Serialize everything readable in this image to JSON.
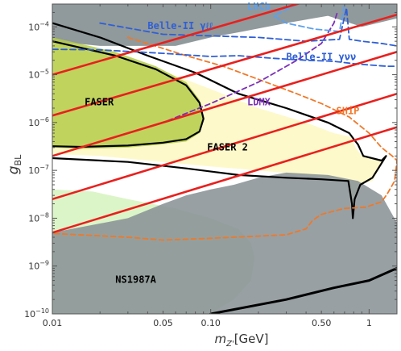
{
  "chart_data": {
    "type": "line",
    "title": "",
    "xlabel_main": "m",
    "xlabel_sub": "Z'",
    "xlabel_unit": "[GeV]",
    "ylabel_main": "g",
    "ylabel_sub": "BL",
    "xscale": "log",
    "yscale": "log",
    "xlim": [
      0.01,
      1.5
    ],
    "ylim": [
      1e-10,
      0.0003
    ],
    "grid": false,
    "legend": "none",
    "x_ticks": [
      {
        "value": 0.01,
        "label": "0.01"
      },
      {
        "value": 0.05,
        "label": "0.05"
      },
      {
        "value": 0.1,
        "label": "0.10"
      },
      {
        "value": 0.5,
        "label": "0.50"
      },
      {
        "value": 1,
        "label": "1"
      }
    ],
    "y_ticks": [
      {
        "exp": -10,
        "base": "10",
        "sup": "−10"
      },
      {
        "exp": -9,
        "base": "10",
        "sup": "−9"
      },
      {
        "exp": -8,
        "base": "10",
        "sup": "−8"
      },
      {
        "exp": -7,
        "base": "10",
        "sup": "−7"
      },
      {
        "exp": -6,
        "base": "10",
        "sup": "−6"
      },
      {
        "exp": -5,
        "base": "10",
        "sup": "−5"
      },
      {
        "exp": -4,
        "base": "10",
        "sup": "−4"
      }
    ],
    "colors": {
      "excluded_gray": "#8a9396",
      "ns1987a_fill": "#dcf5c8",
      "faser2_fill": "#fdf8c4",
      "faser_fill": "#b5cc4a",
      "ship": "#f07828",
      "ldmx": "#7b2fb8",
      "belle": "#2f5fd6",
      "lhcb": "#5aa0f0",
      "red_lines": "#e8201e",
      "black": "#000000"
    },
    "regions": [
      {
        "name": "excluded",
        "label": "",
        "points": [
          [
            0.01,
            1e-10
          ],
          [
            1.5,
            1e-10
          ],
          [
            1.5,
            8e-09
          ],
          [
            1.2,
            3e-08
          ],
          [
            0.85,
            6e-08
          ],
          [
            0.55,
            8e-08
          ],
          [
            0.3,
            9e-08
          ],
          [
            0.2,
            7e-08
          ],
          [
            0.14,
            5e-08
          ],
          [
            0.1,
            4e-08
          ],
          [
            0.07,
            3e-08
          ],
          [
            0.05,
            2e-08
          ],
          [
            0.03,
            1e-08
          ],
          [
            0.01,
            5e-09
          ]
        ]
      },
      {
        "name": "excluded-top",
        "label": "",
        "points": [
          [
            0.01,
            0.0003
          ],
          [
            1.5,
            0.0003
          ],
          [
            1.5,
            0.00015
          ],
          [
            0.9,
            0.0001
          ],
          [
            0.55,
            0.00017
          ],
          [
            0.3,
            0.00012
          ],
          [
            0.16,
            8e-05
          ],
          [
            0.1,
            6e-05
          ],
          [
            0.06,
            4e-05
          ],
          [
            0.02,
            4e-05
          ],
          [
            0.01,
            5e-05
          ]
        ]
      },
      {
        "name": "ns1987a",
        "label": "NS1987A",
        "points": [
          [
            0.01,
            1e-10
          ],
          [
            0.1,
            1e-10
          ],
          [
            0.14,
            2e-10
          ],
          [
            0.18,
            5e-10
          ],
          [
            0.19,
            1.5e-09
          ],
          [
            0.18,
            3e-09
          ],
          [
            0.15,
            6e-09
          ],
          [
            0.1,
            1e-08
          ],
          [
            0.06,
            1.6e-08
          ],
          [
            0.03,
            2.5e-08
          ],
          [
            0.018,
            3.6e-08
          ],
          [
            0.01,
            4e-08
          ]
        ]
      },
      {
        "name": "faser2",
        "label": "FASER 2",
        "points": [
          [
            0.02,
            3e-05
          ],
          [
            0.04,
            1.6e-05
          ],
          [
            0.1,
            5e-06
          ],
          [
            0.2,
            2e-06
          ],
          [
            0.4,
            1e-06
          ],
          [
            0.6,
            6e-07
          ],
          [
            0.77,
            5e-07
          ],
          [
            0.82,
            3e-07
          ],
          [
            0.9,
            2e-07
          ],
          [
            1.2,
            1.6e-07
          ],
          [
            1.28,
            2e-07
          ],
          [
            1.05,
            6e-08
          ],
          [
            0.85,
            5e-08
          ],
          [
            0.78,
            1e-08
          ],
          [
            0.74,
            6e-08
          ],
          [
            0.4,
            8e-08
          ],
          [
            0.2,
            1e-07
          ],
          [
            0.1,
            1.2e-07
          ],
          [
            0.05,
            1.5e-07
          ],
          [
            0.02,
            2e-07
          ],
          [
            0.01,
            2.2e-07
          ],
          [
            0.01,
            6e-05
          ]
        ]
      },
      {
        "name": "faser",
        "label": "FASER",
        "points": [
          [
            0.01,
            6e-05
          ],
          [
            0.025,
            3e-05
          ],
          [
            0.045,
            1.5e-05
          ],
          [
            0.07,
            7e-06
          ],
          [
            0.085,
            3e-06
          ],
          [
            0.09,
            1.3e-06
          ],
          [
            0.085,
            6e-07
          ],
          [
            0.07,
            4e-07
          ],
          [
            0.05,
            3.5e-07
          ],
          [
            0.03,
            3e-07
          ],
          [
            0.015,
            2.8e-07
          ],
          [
            0.01,
            3e-07
          ]
        ]
      }
    ],
    "curves": [
      {
        "name": "faser-contour",
        "label": "",
        "style": "solid-black",
        "points": [
          [
            0.01,
            5e-05
          ],
          [
            0.025,
            2.5e-05
          ],
          [
            0.045,
            1.3e-05
          ],
          [
            0.07,
            6e-06
          ],
          [
            0.085,
            2.6e-06
          ],
          [
            0.09,
            1.2e-06
          ],
          [
            0.085,
            6.5e-07
          ],
          [
            0.07,
            4.5e-07
          ],
          [
            0.05,
            3.8e-07
          ],
          [
            0.03,
            3.3e-07
          ],
          [
            0.015,
            3.1e-07
          ],
          [
            0.01,
            3.2e-07
          ]
        ]
      },
      {
        "name": "faser2-contour",
        "label": "",
        "style": "solid-black",
        "points": [
          [
            0.01,
            0.00012
          ],
          [
            0.02,
            6e-05
          ],
          [
            0.04,
            2.5e-05
          ],
          [
            0.08,
            1.1e-05
          ],
          [
            0.15,
            4e-06
          ],
          [
            0.3,
            2e-06
          ],
          [
            0.55,
            1e-06
          ],
          [
            0.75,
            6e-07
          ],
          [
            0.8,
            4.5e-07
          ],
          [
            0.85,
            3.5e-07
          ],
          [
            0.92,
            2e-07
          ],
          [
            1.2,
            1.6e-07
          ],
          [
            1.28,
            2e-07
          ],
          [
            1.05,
            7e-08
          ],
          [
            0.88,
            5e-08
          ],
          [
            0.81,
            2.5e-08
          ],
          [
            0.79,
            1e-08
          ],
          [
            0.78,
            2e-08
          ],
          [
            0.74,
            6e-08
          ],
          [
            0.5,
            6.5e-08
          ],
          [
            0.3,
            7e-08
          ],
          [
            0.15,
            8e-08
          ],
          [
            0.07,
            1.1e-07
          ],
          [
            0.03,
            1.5e-07
          ],
          [
            0.01,
            1.8e-07
          ]
        ]
      },
      {
        "name": "ship-contour",
        "label": "SHiP",
        "style": "dashed-orange",
        "points": [
          [
            0.03,
            6e-05
          ],
          [
            0.07,
            2.5e-05
          ],
          [
            0.12,
            1.5e-05
          ],
          [
            0.2,
            8e-06
          ],
          [
            0.35,
            4e-06
          ],
          [
            0.5,
            2.5e-06
          ],
          [
            0.75,
            1.3e-06
          ],
          [
            1.0,
            6e-07
          ],
          [
            1.2,
            3e-07
          ],
          [
            1.4,
            2e-07
          ],
          [
            1.5,
            1.6e-07
          ],
          [
            1.45,
            6e-08
          ],
          [
            1.3,
            3.2e-08
          ],
          [
            1.2,
            2.2e-08
          ],
          [
            0.95,
            1.7e-08
          ],
          [
            0.7,
            1.6e-08
          ],
          [
            0.5,
            1.2e-08
          ],
          [
            0.44,
            9e-09
          ],
          [
            0.4,
            6e-09
          ],
          [
            0.3,
            4.5e-09
          ],
          [
            0.1,
            3.8e-09
          ],
          [
            0.05,
            3.5e-09
          ],
          [
            0.03,
            4e-09
          ],
          [
            0.015,
            4.5e-09
          ],
          [
            0.01,
            4.8e-09
          ]
        ]
      },
      {
        "name": "ldmx-contour",
        "label": "LDMX",
        "style": "dashed-purple",
        "points": [
          [
            0.01,
            2e-07
          ],
          [
            0.02,
            4e-07
          ],
          [
            0.05,
            1e-06
          ],
          [
            0.1,
            2.5e-06
          ],
          [
            0.2,
            7e-06
          ],
          [
            0.35,
            2e-05
          ],
          [
            0.5,
            4.5e-05
          ],
          [
            0.6,
            0.00012
          ],
          [
            0.63,
            0.0002
          ]
        ]
      },
      {
        "name": "belle-yll",
        "label": "Belle-II γℓℓ",
        "style": "dashed-blue",
        "points": [
          [
            0.02,
            0.00012
          ],
          [
            0.05,
            7e-05
          ],
          [
            0.2,
            6e-05
          ],
          [
            0.4,
            5e-05
          ],
          [
            0.65,
            5.5e-05
          ],
          [
            0.72,
            0.00025
          ],
          [
            0.75,
            5.5e-05
          ],
          [
            0.9,
            5e-05
          ],
          [
            1.2,
            4.5e-05
          ],
          [
            1.5,
            4e-05
          ]
        ]
      },
      {
        "name": "belle-yvv",
        "label": "Belle-II γνν",
        "style": "dashed-blue",
        "points": [
          [
            0.01,
            3.4e-05
          ],
          [
            0.02,
            3.3e-05
          ],
          [
            0.05,
            2.8e-05
          ],
          [
            0.1,
            2.4e-05
          ],
          [
            0.15,
            2.5e-05
          ],
          [
            0.25,
            2.2e-05
          ],
          [
            0.4,
            2e-05
          ],
          [
            0.6,
            1.9e-05
          ],
          [
            0.8,
            1.7e-05
          ],
          [
            1.0,
            1.6e-05
          ],
          [
            1.3,
            1.5e-05
          ],
          [
            1.5,
            1.5e-05
          ]
        ]
      },
      {
        "name": "lhcb-contour",
        "label": "LHCb",
        "style": "dashed-lightblue",
        "points": [
          [
            0.35,
            0.0003
          ],
          [
            0.25,
            0.00017
          ],
          [
            0.3,
            0.00012
          ],
          [
            0.45,
            9e-05
          ],
          [
            0.65,
            8e-05
          ],
          [
            0.7,
            0.0003
          ]
        ]
      },
      {
        "name": "ns-boundary",
        "label": "",
        "style": "solid-black-thick",
        "points": [
          [
            0.1,
            1e-10
          ],
          [
            0.3,
            2e-10
          ],
          [
            0.6,
            3.5e-10
          ],
          [
            1.0,
            5e-10
          ],
          [
            1.5,
            9e-10
          ]
        ]
      },
      {
        "name": "red-line-1",
        "label": "",
        "style": "solid-red",
        "points": [
          [
            0.01,
            5e-09
          ],
          [
            1.5,
            8e-07
          ]
        ]
      },
      {
        "name": "red-line-2",
        "label": "",
        "style": "solid-red",
        "points": [
          [
            0.01,
            2.5e-08
          ],
          [
            1.5,
            4e-06
          ]
        ]
      },
      {
        "name": "red-line-3",
        "label": "",
        "style": "solid-red",
        "points": [
          [
            0.01,
            2e-07
          ],
          [
            1.5,
            3e-05
          ]
        ]
      },
      {
        "name": "red-line-4",
        "label": "",
        "style": "solid-red",
        "points": [
          [
            0.01,
            1.4e-06
          ],
          [
            1.5,
            0.00018
          ]
        ]
      },
      {
        "name": "red-line-5",
        "label": "",
        "style": "solid-red",
        "points": [
          [
            0.01,
            1e-05
          ],
          [
            1.5,
            0.0012
          ]
        ]
      }
    ],
    "annotations": [
      {
        "name": "faser-label",
        "text": "FASER",
        "x": 0.016,
        "y": 2.3e-06,
        "color": "#000000"
      },
      {
        "name": "faser2-label",
        "text": "FASER 2",
        "x": 0.095,
        "y": 2.6e-07,
        "color": "#000000"
      },
      {
        "name": "ns1987a-label",
        "text": "NS1987A",
        "x": 0.025,
        "y": 4.5e-10,
        "color": "#000000"
      },
      {
        "name": "ship-label",
        "text": "SHiP",
        "x": 0.62,
        "y": 1.5e-06,
        "color": "#f07828"
      },
      {
        "name": "ldmx-label",
        "text": "LDMX",
        "x": 0.17,
        "y": 2.3e-06,
        "color": "#7b2fb8"
      },
      {
        "name": "belle-yll-label",
        "text": "Belle-II γℓℓ",
        "x": 0.04,
        "y": 9e-05,
        "color": "#2f5fd6"
      },
      {
        "name": "belle-yvv-label",
        "text": "Belle-II γνν",
        "x": 0.3,
        "y": 2e-05,
        "color": "#2f5fd6"
      },
      {
        "name": "lhcb-label",
        "text": "LHCb",
        "x": 0.17,
        "y": 0.00023,
        "color": "#5aa0f0"
      }
    ]
  }
}
